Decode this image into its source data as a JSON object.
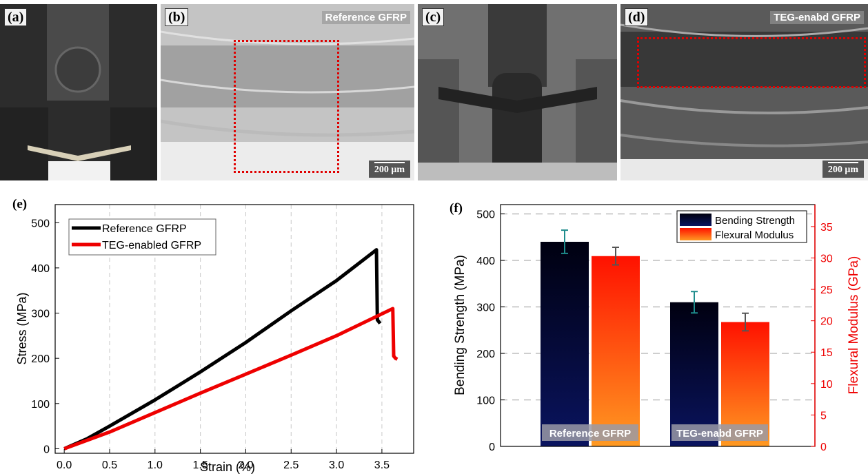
{
  "panels": {
    "a": {
      "label": "(a)"
    },
    "b": {
      "label": "(b)",
      "title": "Reference GFRP",
      "scale": "200 μm"
    },
    "c": {
      "label": "(c)"
    },
    "d": {
      "label": "(d)",
      "title": "TEG-enabd GFRP",
      "scale": "200 μm"
    },
    "e": {
      "label": "(e)"
    },
    "f": {
      "label": "(f)"
    }
  },
  "chart_data": [
    {
      "type": "line",
      "xlabel": "Strain (%)",
      "ylabel": "Stress (MPa)",
      "xlim": [
        -0.1,
        3.85
      ],
      "ylim": [
        -10,
        540
      ],
      "xticks": [
        "0.0",
        "0.5",
        "1.0",
        "1.5",
        "2.0",
        "2.5",
        "3.0",
        "3.5"
      ],
      "yticks": [
        "0",
        "100",
        "200",
        "300",
        "400",
        "500"
      ],
      "grid": "vertical dashed",
      "legend_position": "top-left",
      "series": [
        {
          "name": "Reference GFRP",
          "color": "#000000",
          "x": [
            0,
            0.25,
            0.5,
            1.0,
            1.5,
            2.0,
            2.5,
            3.0,
            3.44,
            3.45,
            3.47,
            3.48
          ],
          "y": [
            0,
            22,
            50,
            108,
            170,
            235,
            305,
            372,
            440,
            285,
            280,
            277
          ]
        },
        {
          "name": "TEG-enabled GFRP",
          "color": "#ee0000",
          "x": [
            0,
            0.5,
            1.0,
            1.5,
            2.0,
            2.5,
            3.0,
            3.62,
            3.63,
            3.65,
            3.67
          ],
          "y": [
            0,
            37,
            80,
            123,
            165,
            207,
            250,
            310,
            205,
            200,
            198
          ]
        }
      ]
    },
    {
      "type": "bar",
      "categories": [
        "Reference GFRP",
        "TEG-enabd GFRP"
      ],
      "ylabel": "Bending Strength (MPa)",
      "y2label": "Flexural Modulus (GPa)",
      "ylim": [
        0,
        520
      ],
      "y2lim": [
        0,
        38.5
      ],
      "yticks": [
        "0",
        "100",
        "200",
        "300",
        "400",
        "500"
      ],
      "y2ticks": [
        "0",
        "5",
        "10",
        "15",
        "20",
        "25",
        "30",
        "35"
      ],
      "legend_position": "top-right",
      "series": [
        {
          "name": "Bending Strength",
          "axis": "left",
          "values": [
            440,
            310
          ],
          "errors": [
            25,
            23
          ],
          "color_top": "#000010",
          "color_bottom": "#0a1460",
          "error_color": "#1e8c8c"
        },
        {
          "name": "Flexural Modulus",
          "axis": "right",
          "values": [
            30.3,
            19.8
          ],
          "errors": [
            1.4,
            1.4
          ],
          "color_top": "#ff1100",
          "color_bottom": "#ff9a22",
          "error_color": "#555555"
        }
      ],
      "colors": {
        "right_axis": "#ee0000"
      }
    }
  ]
}
